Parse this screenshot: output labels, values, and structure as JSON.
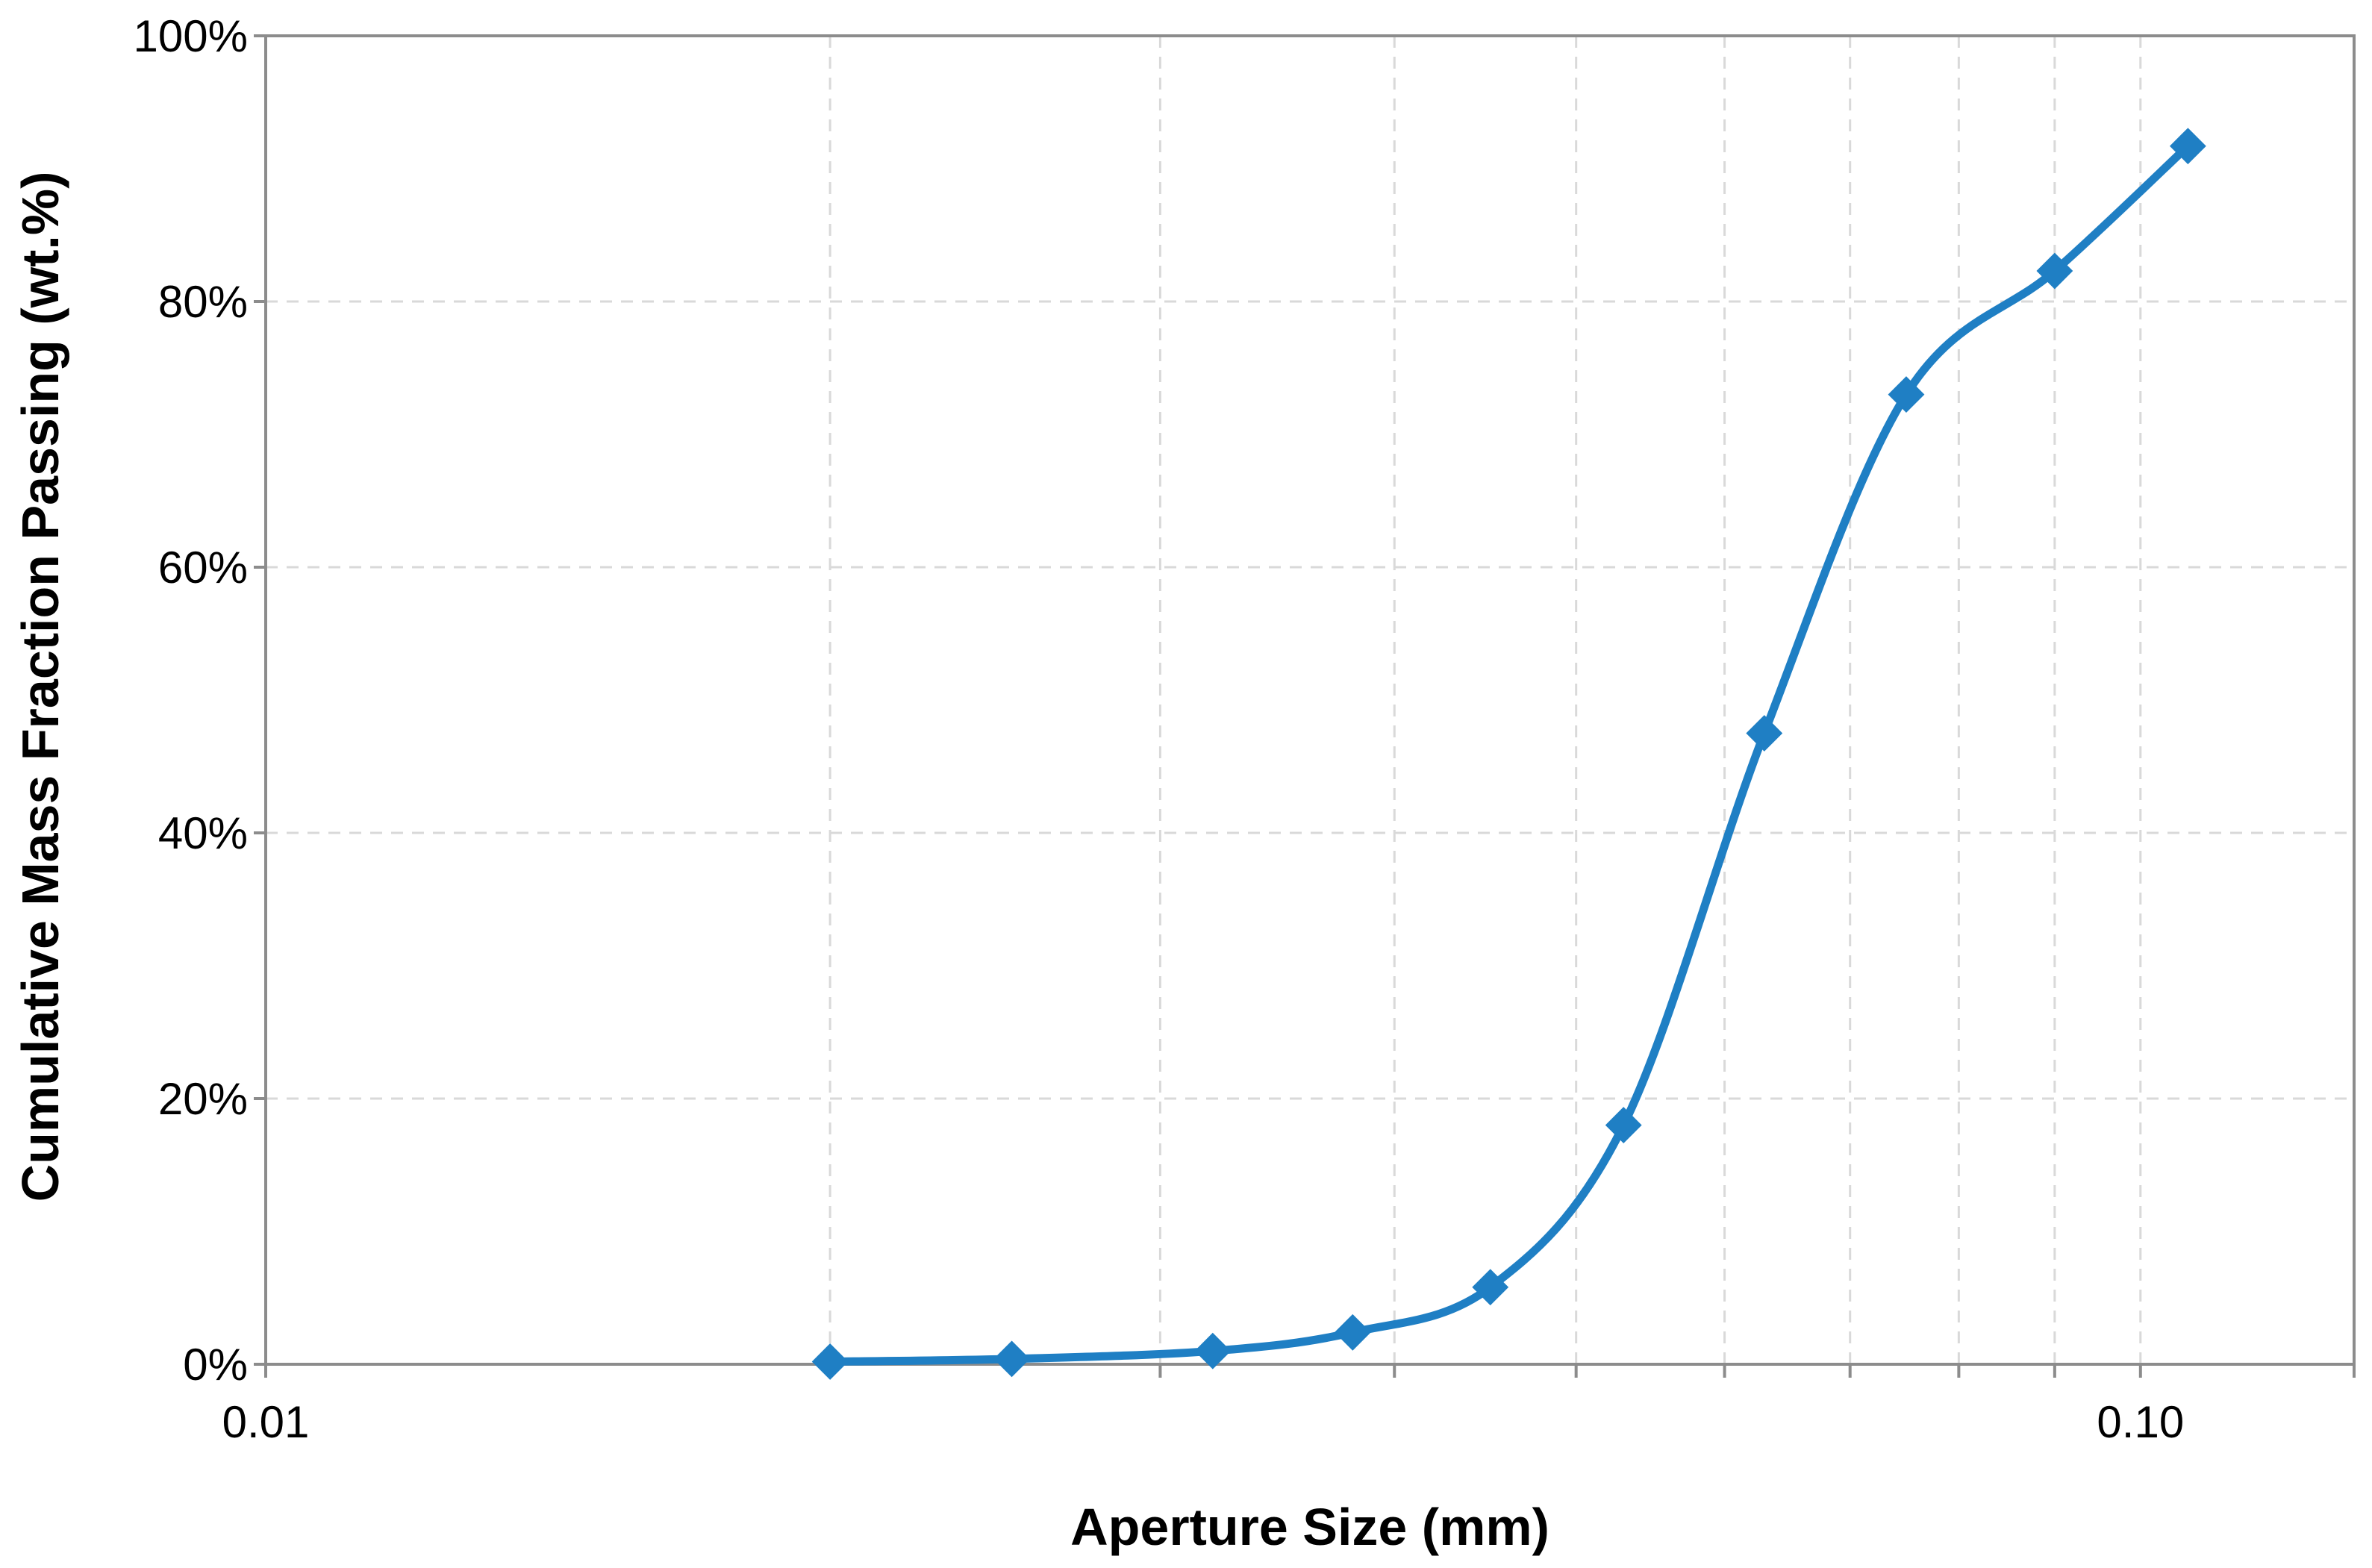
{
  "chart_data": {
    "type": "line",
    "title": "",
    "xlabel": "Aperture Size (mm)",
    "ylabel": "Cumulative Mass Fraction Passing (wt.%)",
    "x_scale": "log",
    "xlim": [
      0.01,
      0.13
    ],
    "ylim": [
      0,
      100
    ],
    "x_ticks": [
      0.01,
      0.1
    ],
    "x_tick_labels": [
      "0.01",
      "0.10"
    ],
    "y_ticks": [
      0,
      20,
      40,
      60,
      80,
      100
    ],
    "y_tick_labels": [
      "0%",
      "20%",
      "40%",
      "60%",
      "80%",
      "100%"
    ],
    "x_minor_gridlines": [
      0.02,
      0.03,
      0.04,
      0.05,
      0.06,
      0.07,
      0.08,
      0.09,
      0.1
    ],
    "grid": true,
    "legend": "none",
    "series": [
      {
        "x": [
          0.02,
          0.025,
          0.032,
          0.038,
          0.045,
          0.053,
          0.063,
          0.075,
          0.09,
          0.106
        ],
        "values": [
          0.2,
          0.4,
          1.0,
          2.4,
          5.8,
          18.0,
          47.5,
          73.0,
          82.3,
          91.7
        ],
        "color": "#1f7fc4",
        "marker": "diamond",
        "smooth": true
      }
    ],
    "colors": {
      "line": "#1f7fc4",
      "axis": "#8c8c8c",
      "grid": "#d9d9d9",
      "text": "#000000"
    }
  }
}
